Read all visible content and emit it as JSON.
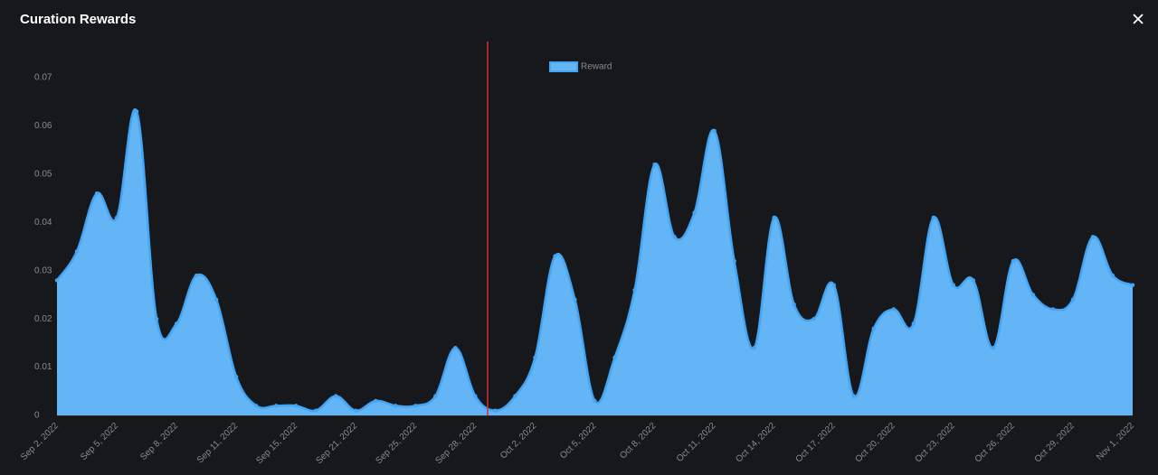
{
  "header": {
    "title": "Curation Rewards"
  },
  "chart_data": {
    "type": "area",
    "categories": [
      "Sep 2, 2022",
      null,
      null,
      "Sep 5, 2022",
      null,
      null,
      "Sep 8, 2022",
      null,
      null,
      "Sep 11, 2022",
      null,
      null,
      "Sep 15, 2022",
      null,
      null,
      "Sep 21, 2022",
      null,
      null,
      "Sep 25, 2022",
      null,
      null,
      "Sep 28, 2022",
      null,
      null,
      "Oct 2, 2022",
      null,
      null,
      "Oct 5, 2022",
      null,
      null,
      "Oct 8, 2022",
      null,
      null,
      "Oct 11, 2022",
      null,
      null,
      "Oct 14, 2022",
      null,
      null,
      "Oct 17, 2022",
      null,
      null,
      "Oct 20, 2022",
      null,
      null,
      "Oct 23, 2022",
      null,
      null,
      "Oct 26, 2022",
      null,
      null,
      "Oct 29, 2022",
      null,
      null,
      "Nov 1, 2022"
    ],
    "series": [
      {
        "name": "Reward",
        "color": "#64b5f6",
        "values": [
          0.028,
          0.034,
          0.046,
          0.041,
          0.063,
          0.02,
          0.019,
          0.029,
          0.024,
          0.008,
          0.002,
          0.002,
          0.002,
          0.001,
          0.004,
          0.001,
          0.003,
          0.002,
          0.002,
          0.004,
          0.014,
          0.004,
          0.001,
          0.004,
          0.012,
          0.033,
          0.024,
          0.003,
          0.012,
          0.026,
          0.052,
          0.037,
          0.042,
          0.059,
          0.032,
          0.014,
          0.041,
          0.023,
          0.02,
          0.027,
          0.004,
          0.018,
          0.022,
          0.019,
          0.041,
          0.027,
          0.028,
          0.014,
          0.032,
          0.025,
          0.022,
          0.024,
          0.037,
          0.029,
          0.027
        ]
      }
    ],
    "ylim": [
      0,
      0.07
    ],
    "yticks": [
      0,
      0.01,
      0.02,
      0.03,
      0.04,
      0.05,
      0.06,
      0.07
    ],
    "grid": false,
    "legend": "top"
  }
}
